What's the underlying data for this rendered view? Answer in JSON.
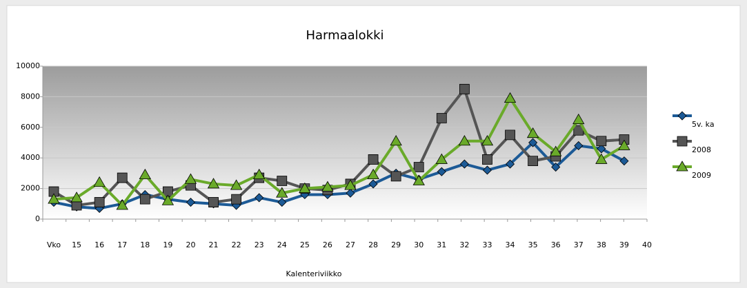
{
  "chart_data": {
    "type": "line",
    "title": "Harmaalokki",
    "x_label": "Kalenteriviikko",
    "categories": [
      "Vko",
      "15",
      "16",
      "17",
      "18",
      "19",
      "20",
      "21",
      "22",
      "23",
      "24",
      "25",
      "26",
      "27",
      "28",
      "29",
      "30",
      "31",
      "32",
      "33",
      "34",
      "35",
      "36",
      "37",
      "38",
      "39",
      "40"
    ],
    "ylim": [
      0,
      10000
    ],
    "yticks": [
      0,
      2000,
      4000,
      6000,
      8000,
      10000
    ],
    "grid": true,
    "legend": "right",
    "series": [
      {
        "name": "5v. ka",
        "color": "#1c5a96",
        "marker": "diamond",
        "values": [
          1100,
          800,
          700,
          1000,
          1600,
          1300,
          1100,
          1000,
          900,
          1400,
          1100,
          1600,
          1600,
          1700,
          2300,
          3000,
          2600,
          3100,
          3600,
          3200,
          3600,
          5000,
          3400,
          4800,
          4600,
          3800,
          null
        ]
      },
      {
        "name": "2008",
        "color": "#555555",
        "marker": "square",
        "values": [
          1800,
          900,
          1100,
          2700,
          1300,
          1800,
          2200,
          1100,
          1300,
          2700,
          2500,
          2000,
          1900,
          2300,
          3900,
          2800,
          3400,
          6600,
          8500,
          3900,
          5500,
          3800,
          4100,
          5800,
          5100,
          5200,
          null
        ]
      },
      {
        "name": "2009",
        "color": "#6aaa2a",
        "marker": "triangle",
        "values": [
          1300,
          1400,
          2400,
          900,
          2900,
          1200,
          2600,
          2300,
          2200,
          2900,
          1700,
          2000,
          2100,
          2200,
          2900,
          5100,
          2500,
          3900,
          5100,
          5100,
          7900,
          5600,
          4400,
          6500,
          3900,
          4800,
          null
        ]
      }
    ]
  }
}
